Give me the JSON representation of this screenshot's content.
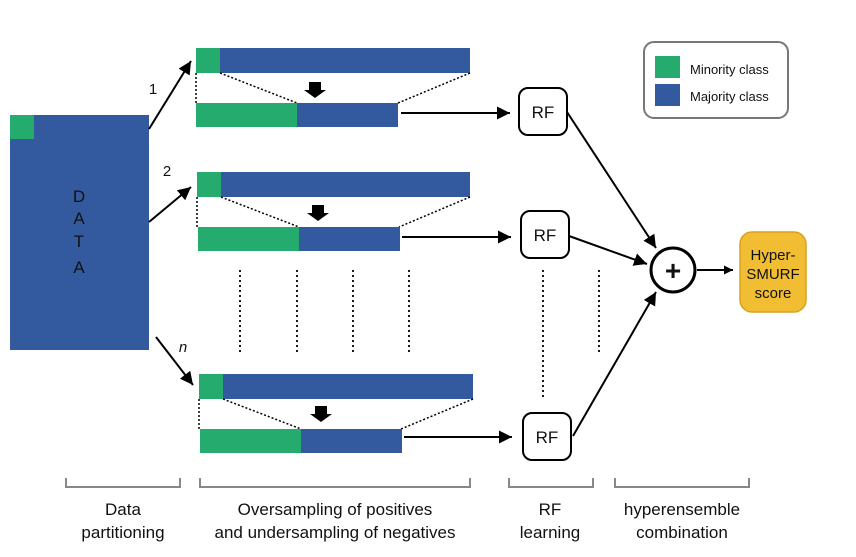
{
  "colors": {
    "minority": "#25ab6d",
    "majority": "#335a9e",
    "score_fill": "#f1bd32",
    "score_stroke": "#d9a21e",
    "legend_border": "#777777",
    "bracket": "#888888"
  },
  "data_block": {
    "letters": [
      "D",
      "A",
      "T",
      "A"
    ]
  },
  "arrows": {
    "partition_labels": [
      "1",
      "2",
      "n"
    ]
  },
  "rf_label": "RF",
  "combiner_symbol": "+",
  "score": {
    "line1": "Hyper-",
    "line2": "SMURF",
    "line3": "score"
  },
  "legend": {
    "minority_label": "Minority class",
    "majority_label": "Majority class"
  },
  "stages": [
    {
      "line1": "Data",
      "line2": "partitioning"
    },
    {
      "line1": "Oversampling of positives",
      "line2": "and undersampling of negatives"
    },
    {
      "line1": "RF",
      "line2": "learning"
    },
    {
      "line1": "hyperensemble",
      "line2": "combination"
    }
  ]
}
